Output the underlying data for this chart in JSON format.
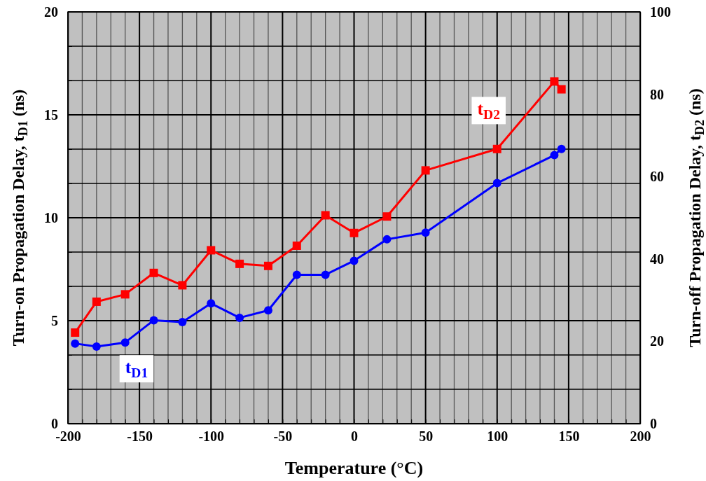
{
  "chart_data": {
    "type": "line",
    "xlabel": "Temperature (°C)",
    "ylabel": "Turn-on Propagation Delay, t$_{D1}$ (ns)",
    "y2label": "Turn-off Propagation Delay, t$_{D2}$ (ns)",
    "xlim": [
      -200,
      200
    ],
    "xticks": [
      -200,
      {
        "value": -190,
        "label": null
      },
      {
        "value": -180,
        "label": null
      },
      {
        "value": -170,
        "label": null
      },
      {
        "value": -160,
        "label": null
      },
      -150,
      {
        "value": -140,
        "label": null
      },
      {
        "value": -130,
        "label": null
      },
      {
        "value": -120,
        "label": null
      },
      {
        "value": -110,
        "label": null
      },
      -100,
      {
        "value": -90,
        "label": null
      },
      {
        "value": -80,
        "label": null
      },
      {
        "value": -70,
        "label": null
      },
      {
        "value": -60,
        "label": null
      },
      -50,
      {
        "value": -40,
        "label": null
      },
      {
        "value": -30,
        "label": null
      },
      {
        "value": -20,
        "label": null
      },
      {
        "value": -10,
        "label": null
      },
      0,
      {
        "value": 10,
        "label": null
      },
      {
        "value": 20,
        "label": null
      },
      {
        "value": 30,
        "label": null
      },
      {
        "value": 40,
        "label": null
      },
      50,
      {
        "value": 60,
        "label": null
      },
      {
        "value": 70,
        "label": null
      },
      {
        "value": 80,
        "label": null
      },
      {
        "value": 90,
        "label": null
      },
      100,
      {
        "value": 110,
        "label": null
      },
      {
        "value": 120,
        "label": null
      },
      {
        "value": 130,
        "label": null
      },
      {
        "value": 140,
        "label": null
      },
      150,
      {
        "value": 160,
        "label": null
      },
      {
        "value": 170,
        "label": null
      },
      {
        "value": 180,
        "label": null
      },
      {
        "value": 190,
        "label": null
      },
      200
    ],
    "ylim": [
      0,
      20
    ],
    "yticks": [
      0,
      {
        "value": 1.667,
        "label": null
      },
      {
        "value": 3.333,
        "label": null
      },
      5,
      {
        "value": 6.667,
        "label": null
      },
      {
        "value": 8.333,
        "label": null
      },
      10,
      {
        "value": 11.667,
        "label": null
      },
      {
        "value": 13.333,
        "label": null
      },
      15,
      {
        "value": 16.667,
        "label": null
      },
      {
        "value": 18.333,
        "label": null
      },
      20
    ],
    "y2lim": [
      0,
      100
    ],
    "y2ticks": [
      0,
      20,
      40,
      60,
      80,
      100
    ],
    "grid": true,
    "line_style": "solid",
    "series": [
      {
        "name": "t$_{D1}$",
        "color": "#0000ff",
        "marker": "circle",
        "x": [
          -195,
          -180,
          -160,
          -140,
          -120,
          -100,
          -80,
          -60,
          -40,
          -20,
          0,
          23,
          50,
          100,
          140,
          145
        ],
        "values": [
          3.89,
          3.74,
          3.94,
          5.02,
          4.93,
          5.84,
          5.14,
          5.5,
          7.23,
          7.23,
          7.91,
          8.95,
          9.28,
          11.68,
          13.04,
          13.34
        ]
      },
      {
        "name": "t$_{D2}$",
        "color": "#ff0000",
        "marker": "square",
        "axis": "y2",
        "x": [
          -195,
          -180,
          -160,
          -140,
          -120,
          -100,
          -80,
          -60,
          -40,
          -20,
          0,
          23,
          50,
          100,
          140,
          145
        ],
        "values": [
          22.1,
          29.6,
          31.4,
          36.6,
          33.6,
          42.1,
          38.8,
          38.3,
          43.2,
          50.6,
          46.3,
          50.3,
          61.5,
          66.7,
          83.1,
          81.2
        ]
      }
    ]
  }
}
